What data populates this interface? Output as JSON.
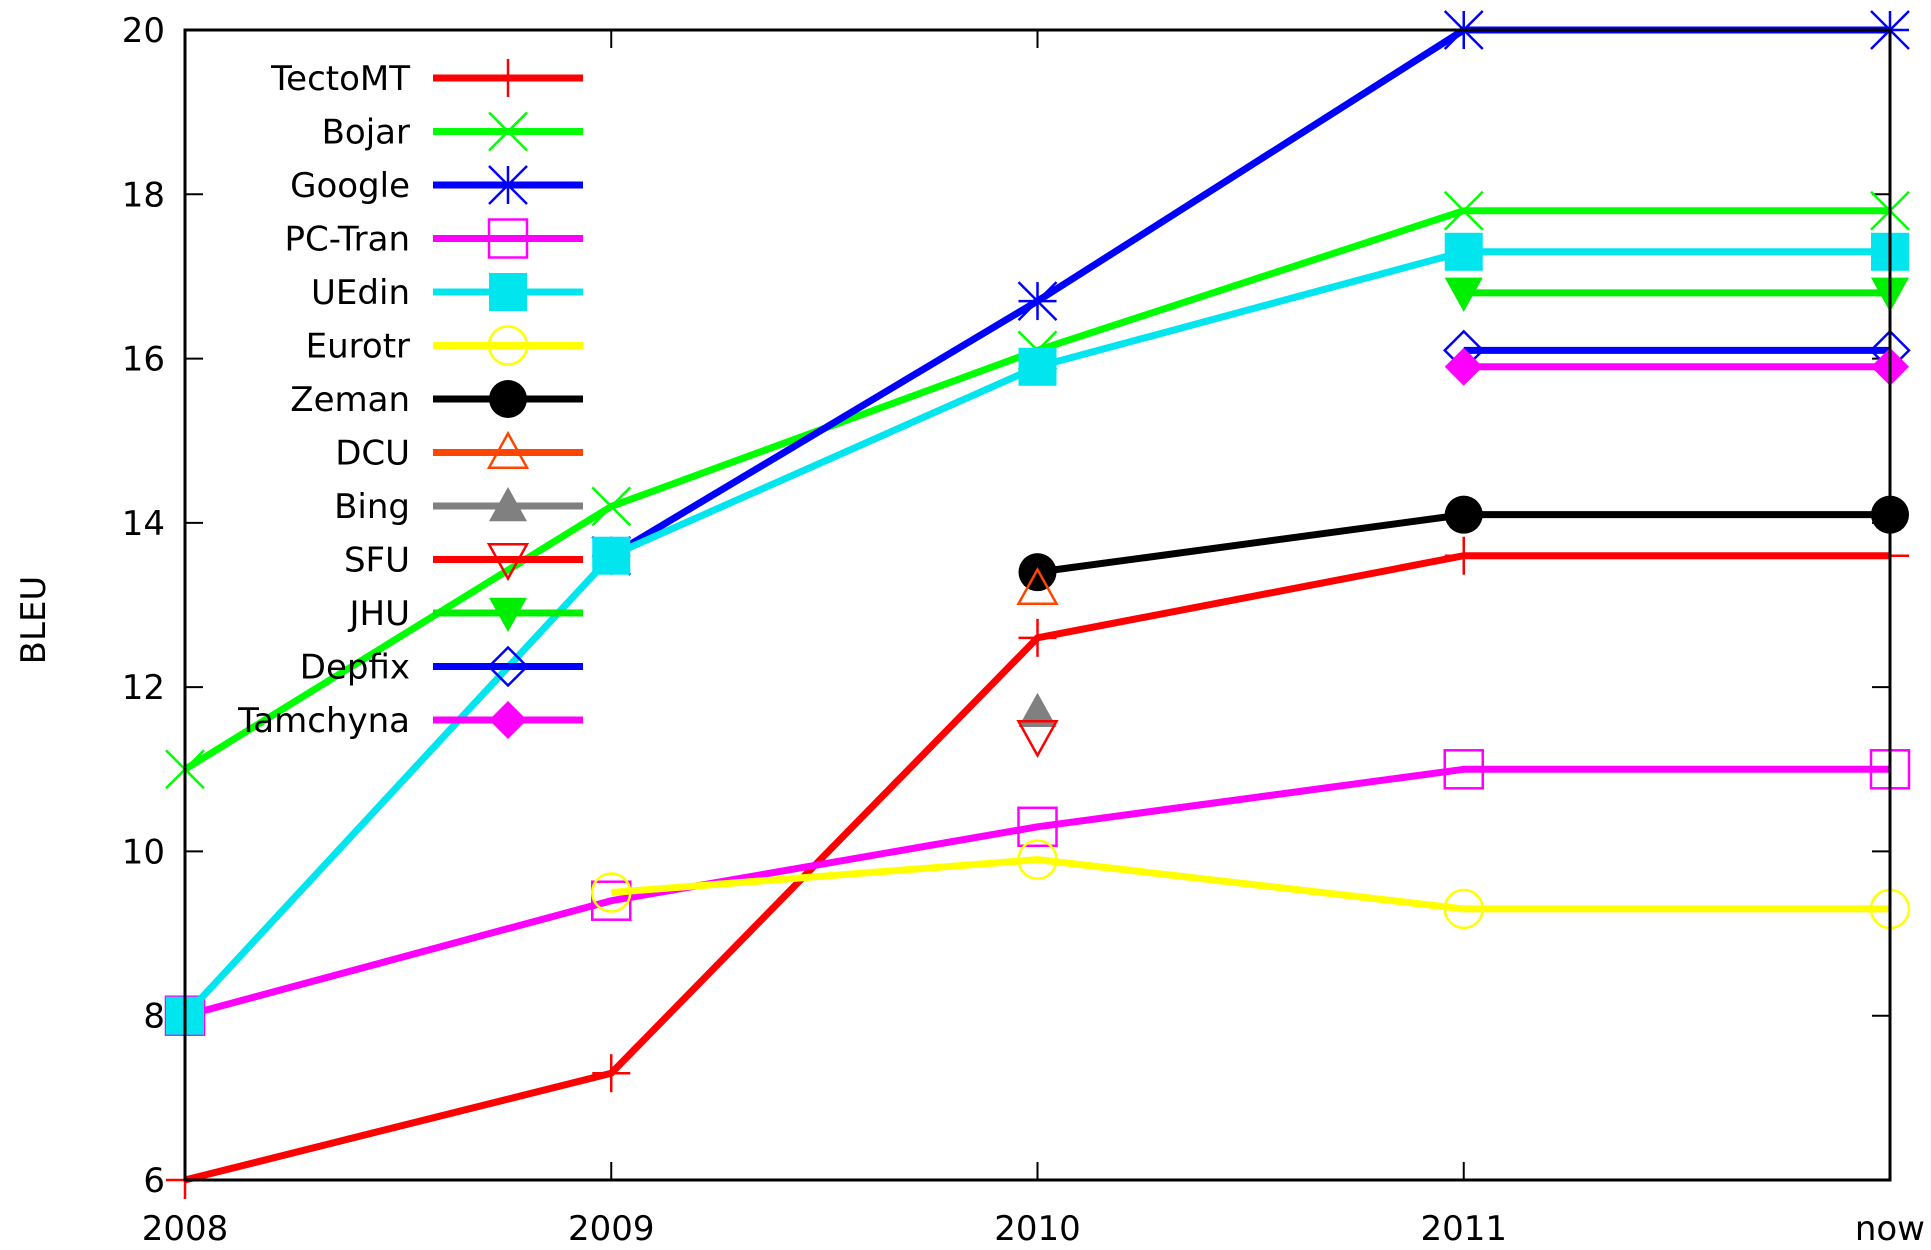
{
  "chart_data": {
    "type": "line",
    "title": "",
    "xlabel": "",
    "ylabel": "BLEU",
    "categories": [
      "2008",
      "2009",
      "2010",
      "2011",
      "now"
    ],
    "ylim": [
      6,
      20
    ],
    "yticks": [
      6,
      8,
      10,
      12,
      14,
      16,
      18,
      20
    ],
    "legend_position": "top-left",
    "grid": false,
    "series": [
      {
        "name": "TectoMT",
        "color": "#ff0000",
        "marker": "plus",
        "values": [
          6.0,
          7.3,
          12.6,
          13.6,
          13.6
        ]
      },
      {
        "name": "Bojar",
        "color": "#00ff00",
        "marker": "cross",
        "values": [
          11.0,
          14.2,
          16.1,
          17.8,
          17.8
        ]
      },
      {
        "name": "Google",
        "color": "#0000ff",
        "marker": "star",
        "values": [
          null,
          13.6,
          16.7,
          20.0,
          20.0
        ]
      },
      {
        "name": "PC-Tran",
        "color": "#ff00ff",
        "marker": "square-open",
        "values": [
          8.0,
          9.4,
          10.3,
          11.0,
          11.0
        ]
      },
      {
        "name": "UEdin",
        "color": "#00e5ee",
        "marker": "square-filled",
        "values": [
          8.0,
          13.6,
          15.9,
          17.3,
          17.3
        ]
      },
      {
        "name": "Eurotr",
        "color": "#ffff00",
        "marker": "circle-open",
        "values": [
          null,
          9.5,
          9.9,
          9.3,
          9.3
        ]
      },
      {
        "name": "Zeman",
        "color": "#000000",
        "marker": "circle-filled",
        "values": [
          null,
          null,
          13.4,
          14.1,
          14.1
        ]
      },
      {
        "name": "DCU",
        "color": "#ff4500",
        "marker": "triangle-up-open",
        "values": [
          null,
          null,
          13.2,
          null,
          null
        ]
      },
      {
        "name": "Bing",
        "color": "#808080",
        "marker": "triangle-up-filled",
        "values": [
          null,
          null,
          11.7,
          null,
          null
        ]
      },
      {
        "name": "SFU",
        "color": "#ff0000",
        "marker": "triangle-down-open",
        "values": [
          null,
          null,
          11.4,
          null,
          null
        ]
      },
      {
        "name": "JHU",
        "color": "#00ee00",
        "marker": "triangle-down-filled",
        "values": [
          null,
          null,
          null,
          16.8,
          16.8
        ]
      },
      {
        "name": "Depfix",
        "color": "#0000ff",
        "marker": "diamond-open",
        "values": [
          null,
          null,
          null,
          16.1,
          16.1
        ]
      },
      {
        "name": "Tamchyna",
        "color": "#ff00ff",
        "marker": "diamond-filled",
        "values": [
          null,
          null,
          null,
          15.9,
          15.9
        ]
      }
    ]
  }
}
